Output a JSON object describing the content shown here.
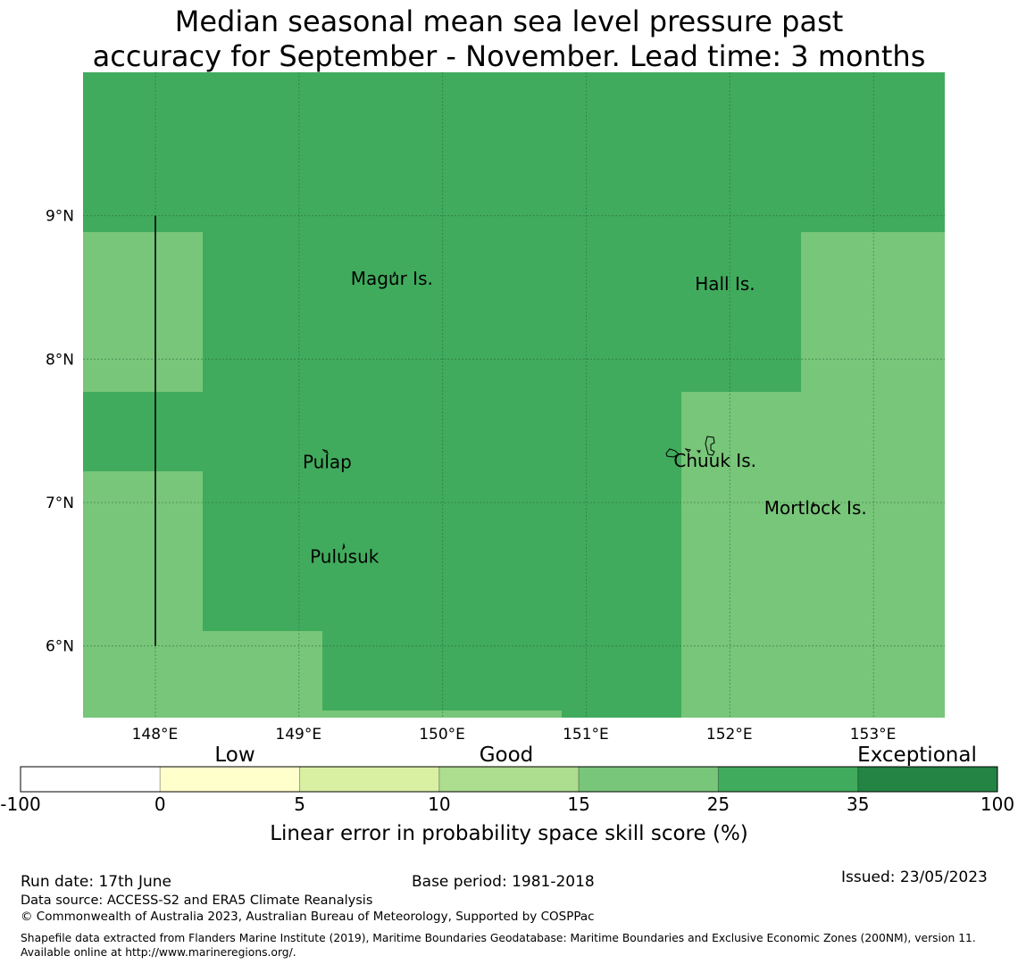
{
  "title": {
    "line1": "Median seasonal mean sea level pressure past",
    "line2": "accuracy for September - November. Lead time: 3 months"
  },
  "map": {
    "lon_range": [
      147.5,
      153.5
    ],
    "lat_range": [
      5.5,
      10.0
    ],
    "x_ticks": [
      {
        "value": 148,
        "label": "148°E"
      },
      {
        "value": 149,
        "label": "149°E"
      },
      {
        "value": 150,
        "label": "150°E"
      },
      {
        "value": 151,
        "label": "151°E"
      },
      {
        "value": 152,
        "label": "152°E"
      },
      {
        "value": 153,
        "label": "153°E"
      }
    ],
    "y_ticks": [
      {
        "value": 9,
        "label": "9°N"
      },
      {
        "value": 8,
        "label": "8°N"
      },
      {
        "value": 7,
        "label": "7°N"
      },
      {
        "value": 6,
        "label": "6°N"
      }
    ],
    "boundary_line": {
      "lon": 148.0,
      "lat_from": 6.0,
      "lat_to": 9.0
    },
    "places": [
      {
        "name": "Magur Is.",
        "lon": 149.65,
        "lat": 8.52
      },
      {
        "name": "Hall Is.",
        "lon": 151.97,
        "lat": 8.48
      },
      {
        "name": "Pulap",
        "lon": 149.2,
        "lat": 7.24
      },
      {
        "name": "Chuuk Is.",
        "lon": 151.9,
        "lat": 7.25
      },
      {
        "name": "Mortlock Is.",
        "lon": 152.6,
        "lat": 6.92
      },
      {
        "name": "Pulusuk",
        "lon": 149.32,
        "lat": 6.58
      }
    ]
  },
  "colorbar": {
    "boundaries": [
      "-100",
      "0",
      "5",
      "10",
      "15",
      "25",
      "35",
      "100"
    ],
    "colors": [
      "#ffffff",
      "#ffffcc",
      "#d9f0a3",
      "#addd8e",
      "#78c679",
      "#41ab5d",
      "#238443"
    ],
    "categories": [
      "Low",
      "Good",
      "Exceptional"
    ],
    "label": "Linear error in probability space skill score (%)"
  },
  "footer": {
    "run_date": "Run date: 17th June",
    "base_period": "Base period: 1981-2018",
    "issued": "Issued: 23/05/2023",
    "data_source": "Data source: ACCESS-S2 and ERA5 Climate Reanalysis",
    "copyright": "© Commonwealth of Australia 2023, Australian Bureau of Meteorology, Supported by COSPPac",
    "shapefile": "Shapefile data extracted from Flanders Marine Institute (2019), Maritime Boundaries Geodatabase: Maritime Boundaries and Exclusive Economic Zones (200NM), version 11. Available online at http://www.marineregions.org/."
  }
}
